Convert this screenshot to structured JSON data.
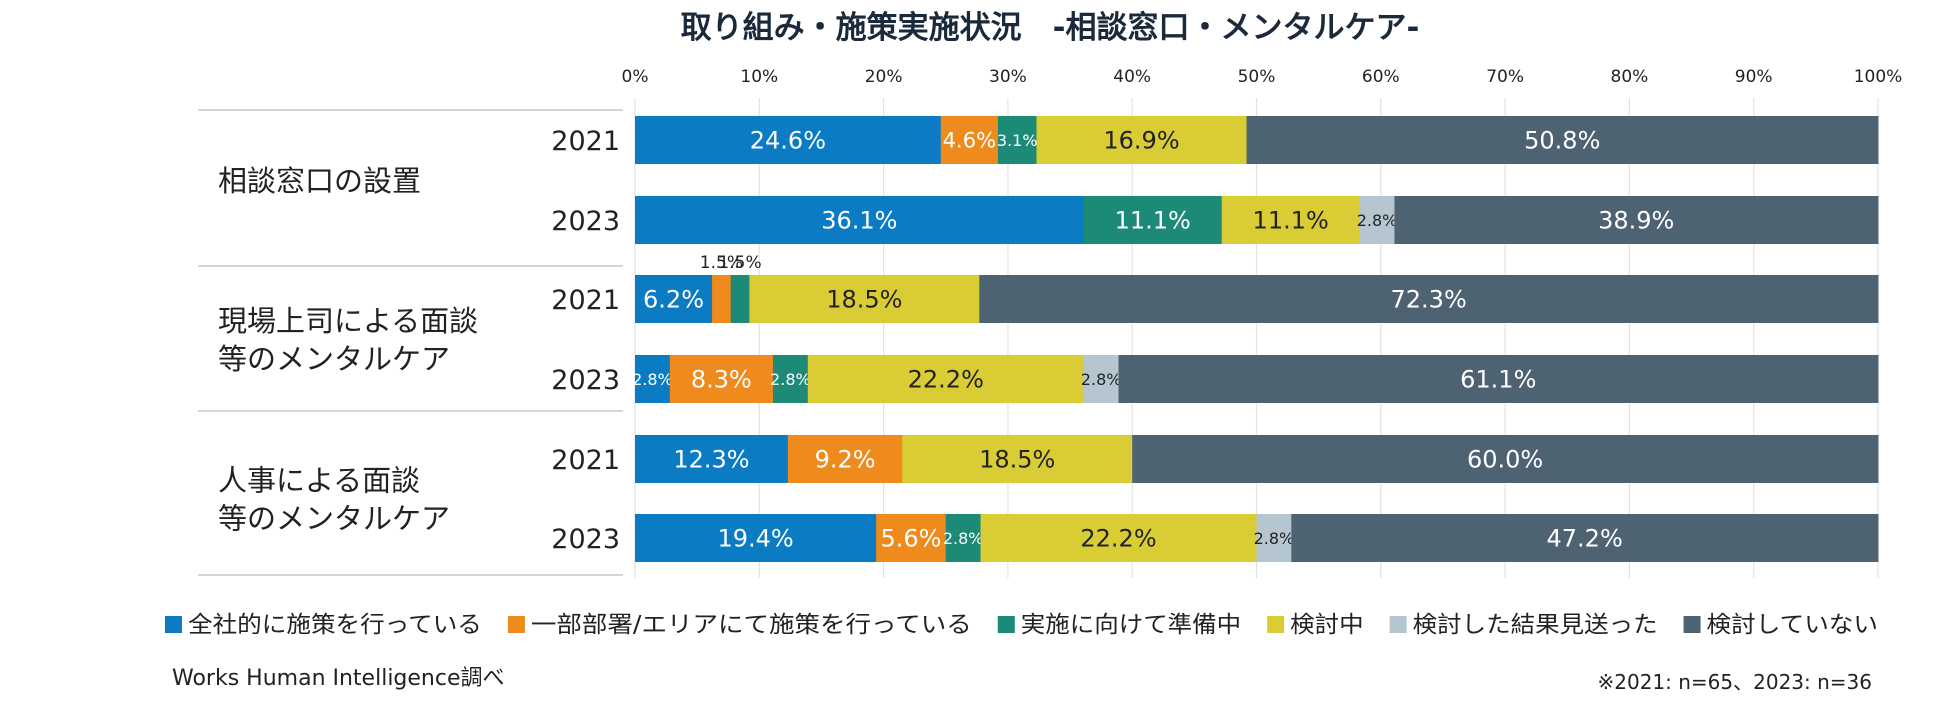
{
  "chart_data": {
    "type": "bar",
    "orientation": "horizontal",
    "stacked": true,
    "title": "取り組み・施策実施状況　-相談窓口・メンタルケア-",
    "xlim": [
      0,
      100
    ],
    "x_tick_labels": [
      "0%",
      "10%",
      "20%",
      "30%",
      "40%",
      "50%",
      "60%",
      "70%",
      "80%",
      "90%",
      "100%"
    ],
    "grid": true,
    "legend_position": "bottom",
    "groups": [
      {
        "label_lines": [
          "相談窓口の設置"
        ]
      },
      {
        "label_lines": [
          "現場上司による面談",
          "等のメンタルケア"
        ]
      },
      {
        "label_lines": [
          "人事による面談",
          "等のメンタルケア"
        ]
      }
    ],
    "rows": [
      {
        "group": 0,
        "year": "2021"
      },
      {
        "group": 0,
        "year": "2023"
      },
      {
        "group": 1,
        "year": "2021"
      },
      {
        "group": 1,
        "year": "2023"
      },
      {
        "group": 2,
        "year": "2021"
      },
      {
        "group": 2,
        "year": "2023"
      }
    ],
    "series": [
      {
        "name": "全社的に施策を行っている",
        "color": "#0b7cc4",
        "label_color": "#ffffff",
        "values": [
          24.6,
          36.1,
          6.2,
          2.8,
          12.3,
          19.4
        ],
        "labels": [
          "24.6%",
          "36.1%",
          "6.2%",
          "2.8%",
          "12.3%",
          "19.4%"
        ]
      },
      {
        "name": "一部部署/エリアにて施策を行っている",
        "color": "#ef8a1d",
        "label_color": "#ffffff",
        "values": [
          4.6,
          0,
          1.5,
          8.3,
          9.2,
          5.6
        ],
        "labels": [
          "4.6%",
          "",
          "1.5%",
          "8.3%",
          "9.2%",
          "5.6%"
        ]
      },
      {
        "name": "実施に向けて準備中",
        "color": "#1d8a78",
        "label_color": "#ffffff",
        "values": [
          3.1,
          11.1,
          1.5,
          2.8,
          0,
          2.8
        ],
        "labels": [
          "3.1%",
          "11.1%",
          "1.5%",
          "2.8%",
          "",
          "2.8%"
        ]
      },
      {
        "name": "検討中",
        "color": "#d9cc35",
        "label_color": "#222222",
        "values": [
          16.9,
          11.1,
          18.5,
          22.2,
          18.5,
          22.2
        ],
        "labels": [
          "16.9%",
          "11.1%",
          "18.5%",
          "22.2%",
          "18.5%",
          "22.2%"
        ]
      },
      {
        "name": "検討した結果見送った",
        "color": "#b6c6d0",
        "label_color": "#222222",
        "values": [
          0,
          2.8,
          0,
          2.8,
          0,
          2.8
        ],
        "labels": [
          "",
          "2.8%",
          "",
          "2.8%",
          "",
          "2.8%"
        ]
      },
      {
        "name": "検討していない",
        "color": "#4e6372",
        "label_color": "#ffffff",
        "values": [
          50.8,
          38.9,
          72.3,
          61.1,
          60.0,
          47.2
        ],
        "labels": [
          "50.8%",
          "38.9%",
          "72.3%",
          "61.1%",
          "60.0%",
          "47.2%"
        ]
      }
    ]
  },
  "footer": {
    "source": "Works Human Intelligence調べ",
    "note": "※2021: n=65、2023: n=36"
  }
}
